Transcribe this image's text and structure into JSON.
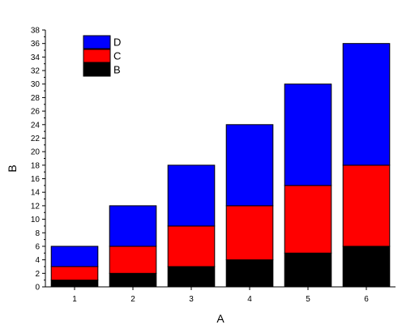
{
  "chart_data": {
    "type": "bar",
    "stacked": true,
    "categories": [
      "1",
      "2",
      "3",
      "4",
      "5",
      "6"
    ],
    "series": [
      {
        "name": "B",
        "color": "#000000",
        "values": [
          1,
          2,
          3,
          4,
          5,
          6
        ]
      },
      {
        "name": "C",
        "color": "#ff0000",
        "values": [
          2,
          4,
          6,
          8,
          10,
          12
        ]
      },
      {
        "name": "D",
        "color": "#0000ff",
        "values": [
          3,
          6,
          9,
          12,
          15,
          18
        ]
      }
    ],
    "xlabel": "A",
    "ylabel": "B",
    "ylim": [
      0,
      38
    ],
    "yticks": [
      0,
      2,
      4,
      6,
      8,
      10,
      12,
      14,
      16,
      18,
      20,
      22,
      24,
      26,
      28,
      30,
      32,
      34,
      36,
      38
    ],
    "grid": false,
    "legend_position": "top-left",
    "legend_order": [
      "D",
      "C",
      "B"
    ]
  }
}
